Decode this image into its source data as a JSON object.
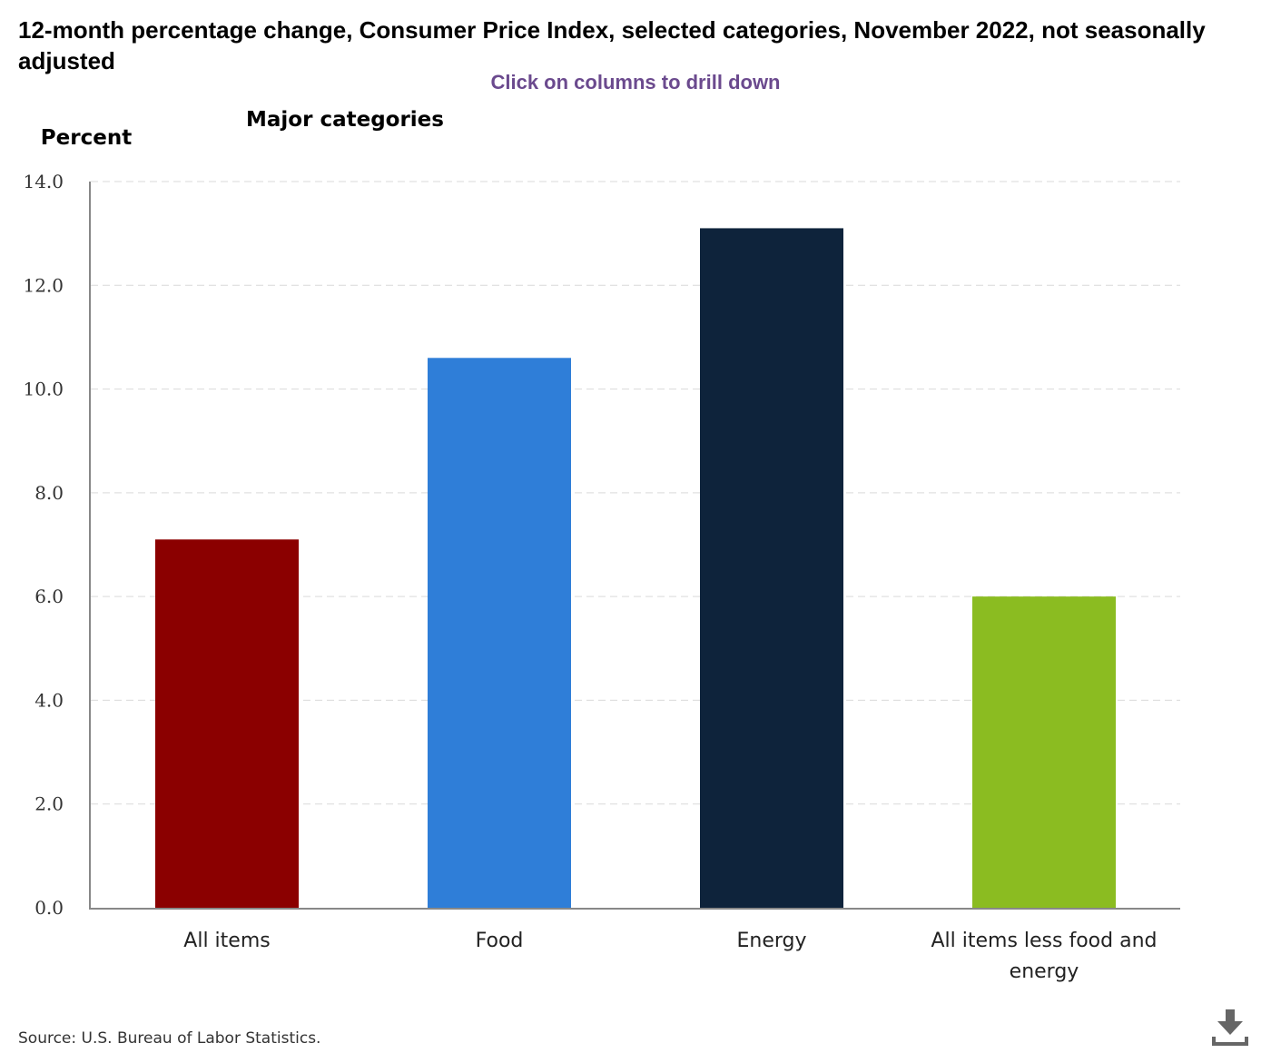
{
  "chart_data": {
    "type": "bar",
    "title": "12-month percentage change, Consumer Price Index, selected categories, November 2022, not seasonally adjusted",
    "subtitle": "Major categories",
    "annotation": "Click on columns to drill down",
    "ylabel": "Percent",
    "xlabel": "",
    "ylim": [
      0,
      14
    ],
    "yticks": [
      "0.0",
      "2.0",
      "4.0",
      "6.0",
      "8.0",
      "10.0",
      "12.0",
      "14.0"
    ],
    "grid": true,
    "categories": [
      "All items",
      "Food",
      "Energy",
      "All items less food and energy"
    ],
    "values": [
      7.1,
      10.6,
      13.1,
      6.0
    ],
    "colors": [
      "#8b0000",
      "#2f7ed8",
      "#0e233b",
      "#8bbc21"
    ],
    "source": "Source: U.S. Bureau of Labor Statistics."
  },
  "colors": {
    "hint": "#6b4a8e",
    "gridline": "#d9d9d9",
    "axis": "#888888"
  },
  "icons": {
    "download": "download-icon"
  }
}
